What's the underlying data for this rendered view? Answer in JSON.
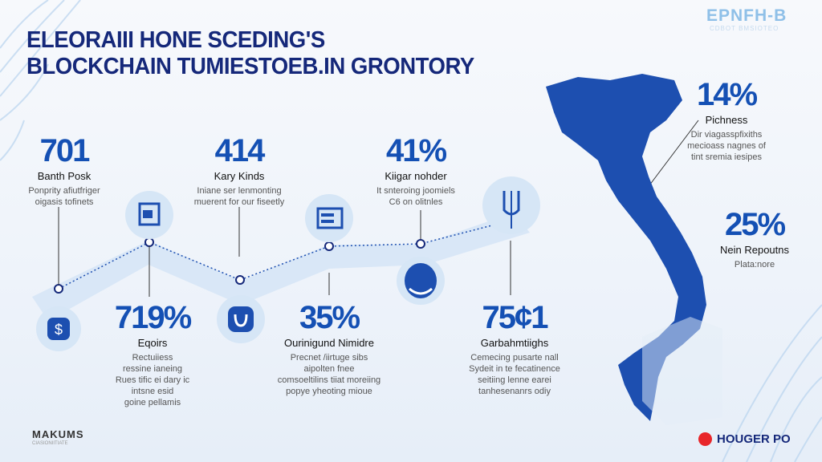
{
  "header": {
    "title_line1": "ELEORAIII HONE SCEDING'S",
    "title_line2": "BLOCKCHAIN TUMIESTOEB.IN GRONTORY"
  },
  "brand_top_right": {
    "name": "EPNFH-B",
    "tagline": "CDBOT BMSIOTEO"
  },
  "brand_bottom_left": {
    "name": "MAKUMS",
    "tagline": "CIASIONIITIATE"
  },
  "brand_bottom_right": {
    "name": "HOUGER PO",
    "icon": "red-badge-icon"
  },
  "colors": {
    "accent": "#1450b4",
    "title": "#15287a",
    "map": "#1d4fb0",
    "band": "#d6e6f6",
    "red": "#e8262a"
  },
  "stats_top": [
    {
      "value": "701",
      "label": "Banth Posk",
      "desc": [
        "Ponprity afiutfriger",
        "oigasis tofinets"
      ]
    },
    {
      "value": "414",
      "label": "Kary Kinds",
      "desc": [
        "Iniane ser lenmonting",
        "muerent for our fiseetly"
      ]
    },
    {
      "value": "41%",
      "label": "Kiigar nohder",
      "desc": [
        "It snteroing joomiels",
        "C6 on olitnles"
      ]
    }
  ],
  "stats_bottom": [
    {
      "value": "719%",
      "label": "Eqoirs",
      "desc": [
        "Rectuiiess",
        "ressine ianeing",
        "Rues tific ei dary ic",
        "intsne esid",
        "goine pellamis"
      ]
    },
    {
      "value": "35%",
      "label": "Ourinigund Nimidre",
      "desc": [
        "Precnet /iirtuge sibs",
        "aipolten fnee",
        "comsoeltilins tiiat moreiing",
        "popye yheoting mioue"
      ]
    },
    {
      "value": "75¢1",
      "label": "Garbahmtiighs",
      "desc": [
        "Cemecing pusarte nall",
        "Sydeit in te fecatinence",
        "seitiing lenne earei",
        "tanhesenanrs odiy"
      ]
    }
  ],
  "stats_map": [
    {
      "value": "14%",
      "label": "Pichness",
      "desc": [
        "Dir viagasspfixiths",
        "mecioass nagnes of",
        "tint sremia iesipes"
      ]
    },
    {
      "value": "25%",
      "label": "Nein Repoutns",
      "desc": [
        "Plata:nore"
      ]
    }
  ],
  "icons": [
    "dollar-icon",
    "document-icon",
    "u-magnet-icon",
    "toolbox-icon",
    "helmet-icon",
    "pipette-icon"
  ]
}
